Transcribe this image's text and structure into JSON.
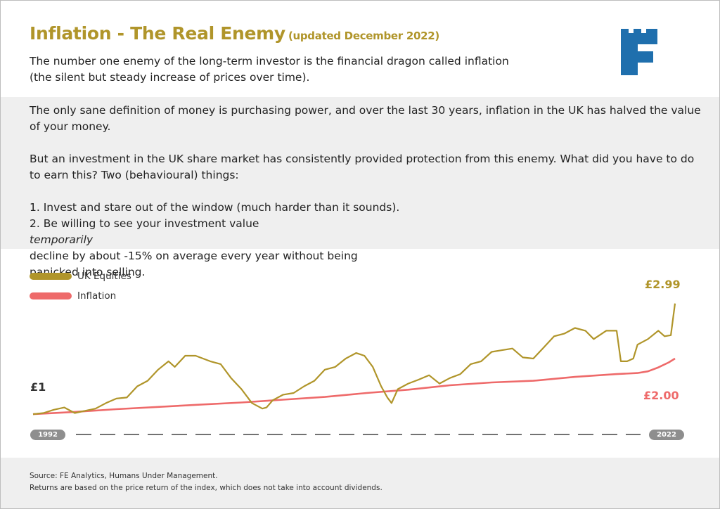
{
  "header": {
    "title": "Inflation - The Real Enemy",
    "updated": "(updated December 2022)",
    "intro_line1": "The number one enemy of the long-term investor is the financial dragon called inflation",
    "intro_line2": "(the silent but steady increase of prices over time)."
  },
  "logo": {
    "icon": "fortress-f-logo-icon",
    "color": "#1f6fad"
  },
  "body": {
    "p1_line1": "The only sane definition of money is purchasing power, and over the last 30 years, inflation in the UK has halved the value",
    "p1_line2": "of your money.",
    "p2_line1": "But an investment in the UK share market has consistently provided protection from this enemy. What did you have to do",
    "p2_line2": "to earn this? Two (behavioural) things:",
    "p3_line1": "1. Invest and stare out of the window (much harder than it sounds).",
    "p3_line2_pre": "2. Be willing to see your investment value ",
    "p3_line2_em": "temporarily",
    "p3_line2_post": " decline by about -15% on average every year without being",
    "p3_line3": "panicked into selling."
  },
  "footer": {
    "source": "Source: FE Analytics, Humans Under Management.",
    "note": "Returns are based on the price return of the index, which does not take into account dividends."
  },
  "chart_data": {
    "type": "line",
    "x_start_label": "1992",
    "x_end_label": "2022",
    "start_value_label": "£1",
    "xlim": [
      1992,
      2022.9
    ],
    "ylim": [
      0.9,
      3.4
    ],
    "legend_position": "top-left",
    "grid": false,
    "series": [
      {
        "name": "UK Equities",
        "color": "#b0952a",
        "end_label": "£2.99",
        "x": [
          1992.0,
          1992.5,
          1993.0,
          1993.5,
          1994.0,
          1994.5,
          1995.0,
          1995.5,
          1996.0,
          1996.5,
          1997.0,
          1997.5,
          1998.0,
          1998.5,
          1998.8,
          1999.3,
          1999.8,
          2000.5,
          2001.0,
          2001.5,
          2002.0,
          2002.5,
          2003.0,
          2003.2,
          2003.5,
          2004.0,
          2004.5,
          2005.0,
          2005.5,
          2006.0,
          2006.5,
          2007.0,
          2007.5,
          2007.9,
          2008.3,
          2008.7,
          2009.0,
          2009.2,
          2009.5,
          2010.0,
          2010.5,
          2011.0,
          2011.5,
          2012.0,
          2012.5,
          2013.0,
          2013.5,
          2014.0,
          2014.5,
          2015.0,
          2015.5,
          2016.0,
          2016.5,
          2017.0,
          2017.5,
          2018.0,
          2018.5,
          2018.9,
          2019.5,
          2020.0,
          2020.2,
          2020.5,
          2020.8,
          2021.0,
          2021.5,
          2022.0,
          2022.3,
          2022.6,
          2022.8
        ],
        "values": [
          1.0,
          1.02,
          1.08,
          1.12,
          1.02,
          1.06,
          1.1,
          1.2,
          1.28,
          1.3,
          1.5,
          1.6,
          1.8,
          1.95,
          1.85,
          2.05,
          2.05,
          1.95,
          1.9,
          1.65,
          1.45,
          1.2,
          1.1,
          1.12,
          1.25,
          1.35,
          1.38,
          1.5,
          1.6,
          1.8,
          1.85,
          2.0,
          2.1,
          2.05,
          1.85,
          1.5,
          1.3,
          1.2,
          1.45,
          1.55,
          1.62,
          1.7,
          1.55,
          1.65,
          1.72,
          1.9,
          1.95,
          2.12,
          2.15,
          2.18,
          2.02,
          2.0,
          2.2,
          2.4,
          2.45,
          2.55,
          2.5,
          2.35,
          2.5,
          2.5,
          1.95,
          1.95,
          2.0,
          2.25,
          2.35,
          2.5,
          2.4,
          2.42,
          2.99
        ]
      },
      {
        "name": "Inflation",
        "color": "#ee6a6a",
        "end_label": "£2.00",
        "x": [
          1992,
          1994,
          1996,
          1998,
          2000,
          2002,
          2004,
          2006,
          2008,
          2010,
          2012,
          2014,
          2016,
          2018,
          2020,
          2021,
          2021.5,
          2022,
          2022.5,
          2022.8
        ],
        "values": [
          1.0,
          1.04,
          1.09,
          1.13,
          1.17,
          1.21,
          1.26,
          1.31,
          1.38,
          1.44,
          1.52,
          1.57,
          1.6,
          1.67,
          1.72,
          1.74,
          1.77,
          1.84,
          1.93,
          2.0
        ]
      }
    ]
  }
}
